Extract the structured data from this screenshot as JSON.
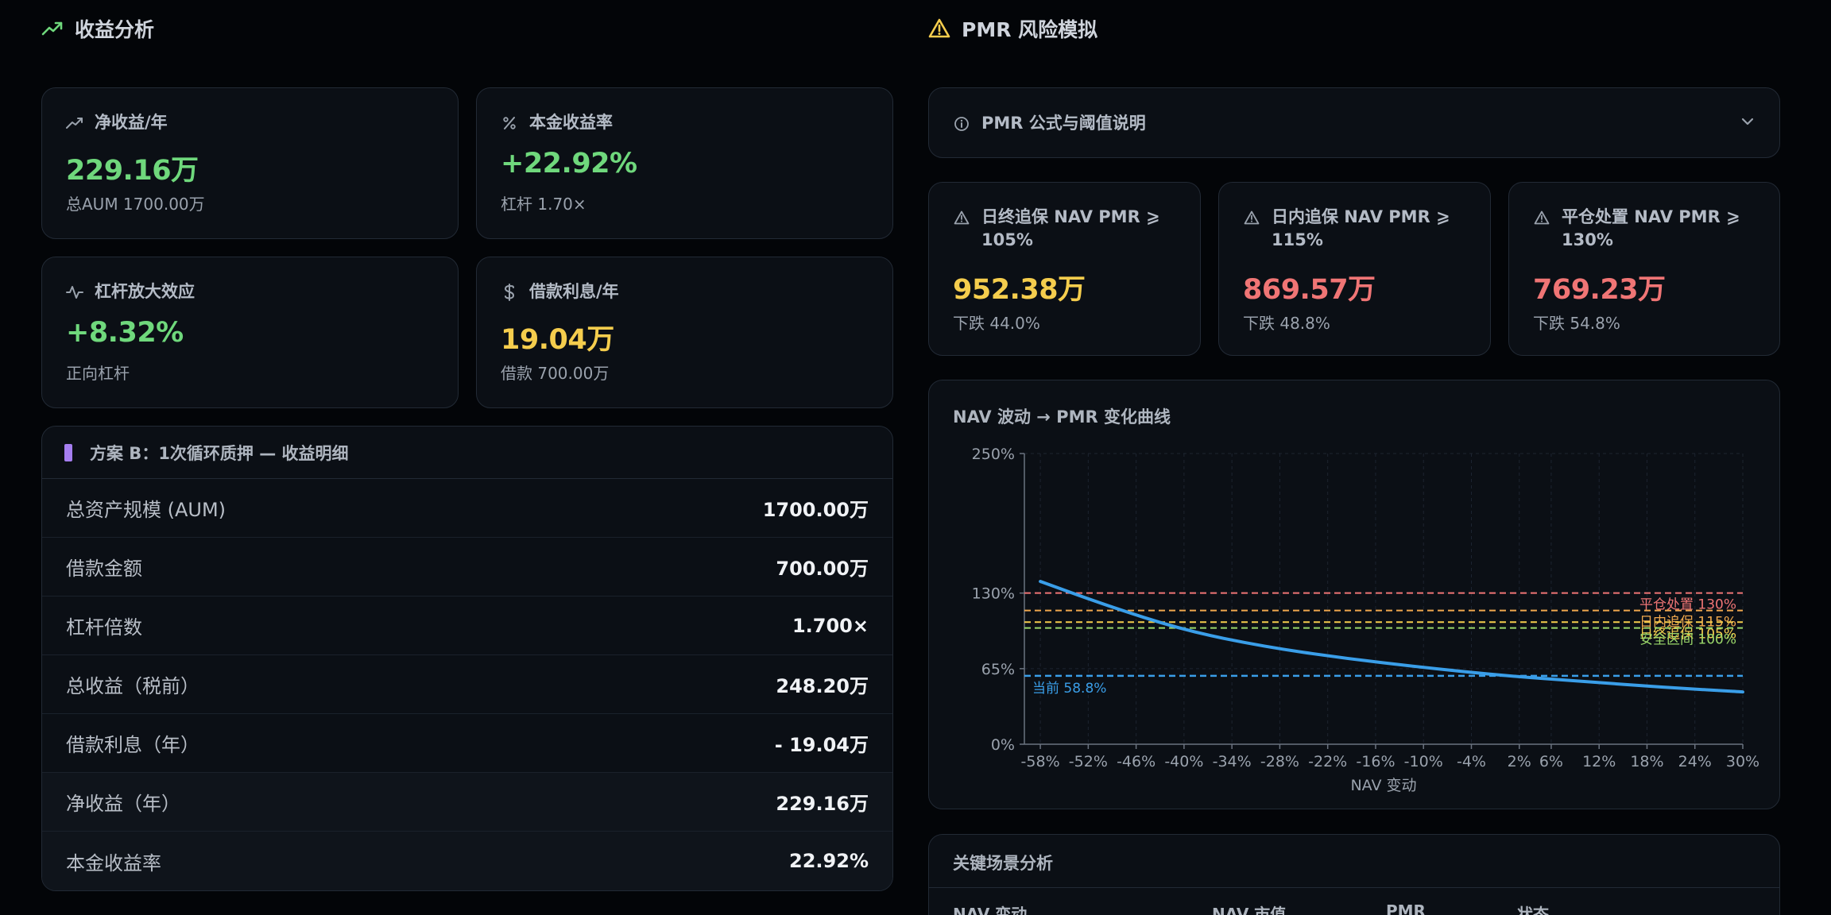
{
  "left": {
    "title": "收益分析",
    "cards": [
      {
        "label": "净收益/年",
        "value": "229.16万",
        "sub": "总AUM 1700.00万",
        "icon": "trending-up-icon",
        "color": "#6fd87c"
      },
      {
        "label": "本金收益率",
        "value": "+22.92%",
        "sub": "杠杆 1.70×",
        "icon": "percent-icon",
        "color": "#6fd87c"
      },
      {
        "label": "杠杆放大效应",
        "value": "+8.32%",
        "sub": "正向杠杆",
        "icon": "activity-icon",
        "color": "#6fd87c"
      },
      {
        "label": "借款利息/年",
        "value": "19.04万",
        "sub": "借款 700.00万",
        "icon": "dollar-icon",
        "color": "#f5cd4d"
      }
    ],
    "detail": {
      "title": "方案 B：1次循环质押 — 收益明细",
      "rows": [
        {
          "label": "总资产规模 (AUM)",
          "value": "1700.00万"
        },
        {
          "label": "借款金额",
          "value": "700.00万"
        },
        {
          "label": "杠杆倍数",
          "value": "1.700×"
        },
        {
          "label": "总收益（税前）",
          "value": "248.20万"
        },
        {
          "label": "借款利息（年）",
          "value": "- 19.04万"
        },
        {
          "label": "净收益（年）",
          "value": "229.16万"
        },
        {
          "label": "本金收益率",
          "value": "22.92%"
        }
      ]
    }
  },
  "right": {
    "title": "PMR 风险模拟",
    "formula": {
      "label": "PMR 公式与阈值说明"
    },
    "thresholds": [
      {
        "label": "日终追保 NAV PMR ⩾ 105%",
        "value": "952.38万",
        "sub": "下跌 44.0%",
        "color": "#f5cd4d"
      },
      {
        "label": "日内追保 NAV PMR ⩾ 115%",
        "value": "869.57万",
        "sub": "下跌 48.8%",
        "color": "#f07575"
      },
      {
        "label": "平仓处置 NAV PMR ⩾ 130%",
        "value": "769.23万",
        "sub": "下跌 54.8%",
        "color": "#f07575"
      }
    ],
    "scenario": {
      "title": "关键场景分析",
      "columns": [
        "NAV 变动",
        "NAV 市值",
        "PMR",
        "状态"
      ]
    }
  },
  "chart_data": {
    "type": "line",
    "title": "NAV 波动 → PMR 变化曲线",
    "xlabel": "NAV 变动",
    "ylabel": "",
    "xlim": [
      -60,
      30
    ],
    "ylim": [
      0,
      250
    ],
    "x_ticks": [
      "-58%",
      "-52%",
      "-46%",
      "-40%",
      "-34%",
      "-28%",
      "-22%",
      "-16%",
      "-10%",
      "-4%",
      "2%",
      "6%",
      "12%",
      "18%",
      "24%",
      "30%"
    ],
    "x_tick_values": [
      -58,
      -52,
      -46,
      -40,
      -34,
      -28,
      -22,
      -16,
      -10,
      -4,
      2,
      6,
      12,
      18,
      24,
      30
    ],
    "y_ticks": [
      "250%",
      "130%",
      "65%",
      "0%"
    ],
    "y_tick_values": [
      250,
      130,
      65,
      0
    ],
    "series": [
      {
        "name": "",
        "color": "#3a9ee8",
        "x": [
          -58,
          -50,
          -40,
          -30,
          -20,
          -10,
          0,
          10,
          20,
          30
        ],
        "y": [
          140,
          120,
          98,
          84,
          74,
          66,
          59,
          54,
          49,
          45
        ]
      }
    ],
    "reference_lines": [
      {
        "label": "平仓处置 130%",
        "y": 130,
        "color": "#f07575"
      },
      {
        "label": "日内追保 115%",
        "y": 115,
        "color": "#f0a84e"
      },
      {
        "label": "日终追保 105%",
        "y": 105,
        "color": "#f5cd4d"
      },
      {
        "label": "安全区间 100%",
        "y": 100,
        "color": "#9bd86a"
      },
      {
        "label": "当前 58.8%",
        "y": 58.8,
        "color": "#3a9ee8"
      }
    ]
  }
}
